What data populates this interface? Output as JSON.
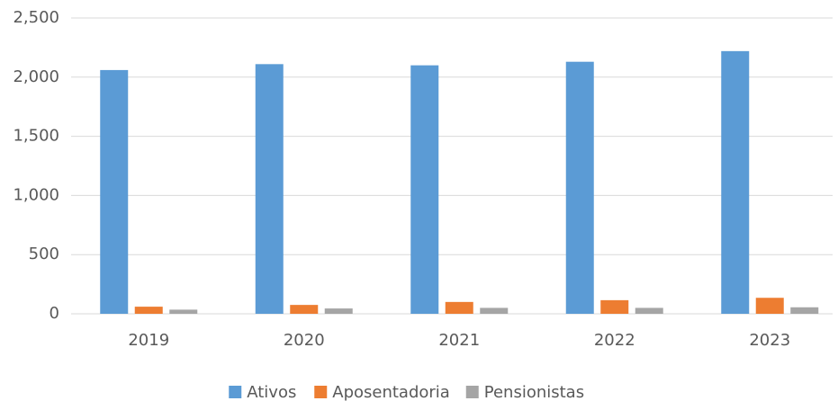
{
  "chart_data": {
    "type": "bar",
    "categories": [
      "2019",
      "2020",
      "2021",
      "2022",
      "2023"
    ],
    "series": [
      {
        "name": "Ativos",
        "color": "#5b9bd5",
        "values": [
          2060,
          2110,
          2100,
          2130,
          2220
        ]
      },
      {
        "name": "Aposentadoria",
        "color": "#ed7d31",
        "values": [
          60,
          75,
          100,
          115,
          135
        ]
      },
      {
        "name": "Pensionistas",
        "color": "#a5a5a5",
        "values": [
          35,
          45,
          50,
          50,
          55
        ]
      }
    ],
    "ylim": [
      0,
      2500
    ],
    "yticks": [
      0,
      500,
      {
        "value": 1000,
        "label": "1,000"
      },
      {
        "value": 1500,
        "label": "1,500"
      },
      {
        "value": 2000,
        "label": "2,000"
      },
      {
        "value": 2500,
        "label": "2,500"
      }
    ],
    "grid": true,
    "legend": "bottom"
  }
}
